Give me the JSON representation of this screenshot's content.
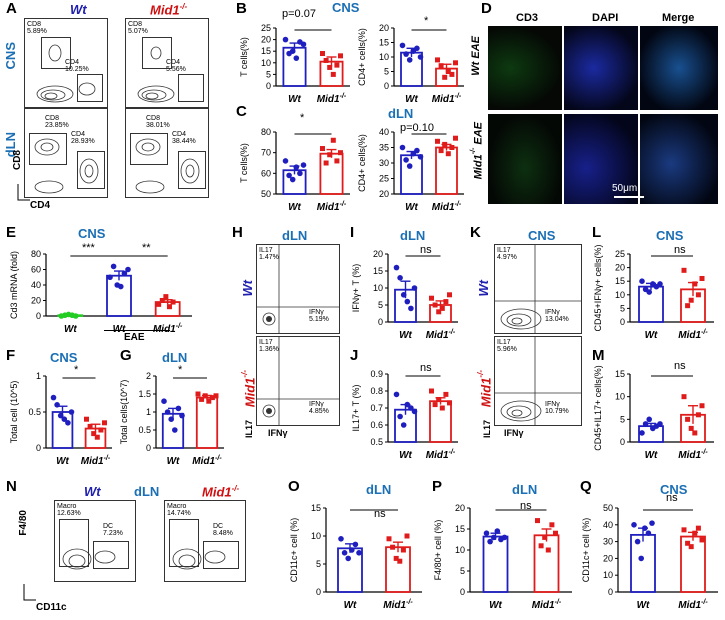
{
  "panels": {
    "A": {
      "letter": "A",
      "group_wt": "Wt",
      "group_mid1": "Mid1",
      "sup": "-/-",
      "rows": [
        "CNS",
        "dLN"
      ],
      "xlabel": "CD4",
      "ylabel": "CD8",
      "gates": [
        {
          "cd8": "CD8\n5.89%",
          "cd4": "CD4\n10.25%"
        },
        {
          "cd8": "CD8\n5.07%",
          "cd4": "CD4\n5.56%"
        },
        {
          "cd8": "CD8\n23.85%",
          "cd4": "CD4\n28.93%"
        },
        {
          "cd8": "CD8\n38.01%",
          "cd4": "CD4\n38.44%"
        }
      ]
    },
    "B": {
      "letter": "B",
      "tissue": "CNS",
      "p_left": "p=0.07",
      "p_right": "*"
    },
    "C": {
      "letter": "C",
      "tissue": "dLN",
      "p_left": "*",
      "p_right": "p=0.10"
    },
    "D": {
      "letter": "D",
      "cols": [
        "CD3",
        "DAPI",
        "Merge"
      ],
      "row1": "Wt EAE",
      "row2": "Mid1",
      "row2_suffix": "EAE",
      "scale": "50μm"
    },
    "E": {
      "letter": "E",
      "tissue": "CNS",
      "sig1": "***",
      "sig2": "**",
      "group_label": "EAE",
      "xlabels": [
        "Wt",
        "Wt",
        "Mid1"
      ]
    },
    "F": {
      "letter": "F",
      "tissue": "CNS",
      "sig": "*"
    },
    "G": {
      "letter": "G",
      "tissue": "dLN",
      "sig": "*"
    },
    "H": {
      "letter": "H",
      "tissue": "dLN",
      "q_il17_wt": "IL17\n1.47%",
      "q_ifn_wt": "IFNγ\n5.19%",
      "q_il17_mid": "IL17\n1.36%",
      "q_ifn_mid": "IFNγ\n4.85%",
      "xlabel": "IFNγ",
      "ylabel": "IL17"
    },
    "I": {
      "letter": "I",
      "tissue": "dLN",
      "sig": "ns"
    },
    "J": {
      "letter": "J",
      "sig": "ns"
    },
    "K": {
      "letter": "K",
      "tissue": "CNS",
      "q_il17_wt": "IL17\n4.97%",
      "q_ifn_wt": "IFNγ\n13.04%",
      "q_il17_mid": "IL17\n5.96%",
      "q_ifn_mid": "IFNγ\n10.79%",
      "xlabel": "IFNγ",
      "ylabel": "IL17"
    },
    "L": {
      "letter": "L",
      "tissue": "CNS",
      "sig": "ns"
    },
    "M": {
      "letter": "M",
      "sig": "ns"
    },
    "N": {
      "letter": "N",
      "tissue": "dLN",
      "macro_wt": "Macro\n12.63%",
      "dc_wt": "DC\n7.23%",
      "macro_mid": "Macro\n14.74%",
      "dc_mid": "DC\n8.48%",
      "xlabel": "CD11c",
      "ylabel": "F4/80"
    },
    "O": {
      "letter": "O",
      "tissue": "dLN",
      "sig": "ns"
    },
    "P": {
      "letter": "P",
      "tissue": "dLN",
      "sig": "ns"
    },
    "Q": {
      "letter": "Q",
      "tissue": "CNS",
      "sig": "ns"
    }
  },
  "colors": {
    "wt": "#1f1fbf",
    "mid1": "#e01b1b",
    "green": "#22cc22",
    "tissue": "#1a6fb5"
  },
  "chart_data": [
    {
      "id": "B-left",
      "type": "bar",
      "categories": [
        "Wt",
        "Mid1"
      ],
      "ylabel": "T cells(%)",
      "ylim": [
        0,
        25
      ],
      "yticks": [
        0,
        5,
        10,
        15,
        20,
        25
      ],
      "values": [
        16.5,
        10.5
      ],
      "errors": [
        2,
        2
      ],
      "points": [
        [
          20,
          14,
          15,
          12,
          19,
          18
        ],
        [
          14,
          11,
          8,
          5,
          9,
          13
        ]
      ]
    },
    {
      "id": "B-right",
      "type": "bar",
      "categories": [
        "Wt",
        "Mid1"
      ],
      "ylabel": "CD4+ cells(%)",
      "ylim": [
        0,
        20
      ],
      "yticks": [
        0,
        5,
        10,
        15,
        20
      ],
      "values": [
        11.5,
        6
      ],
      "errors": [
        1.5,
        1.5
      ],
      "points": [
        [
          14,
          11,
          9,
          12,
          13,
          10
        ],
        [
          9,
          7,
          3,
          5,
          4,
          8
        ]
      ]
    },
    {
      "id": "C-left",
      "type": "bar",
      "categories": [
        "Wt",
        "Mid1"
      ],
      "ylabel": "T cells(%)",
      "ylim": [
        50,
        80
      ],
      "yticks": [
        50,
        60,
        70,
        80
      ],
      "values": [
        61.5,
        69.5
      ],
      "errors": [
        2,
        2
      ],
      "points": [
        [
          66,
          59,
          57,
          63,
          60,
          64
        ],
        [
          72,
          65,
          69,
          76,
          66,
          70
        ]
      ]
    },
    {
      "id": "C-right",
      "type": "bar",
      "categories": [
        "Wt",
        "Mid1"
      ],
      "ylabel": "CD4+ cells(%)",
      "ylim": [
        20,
        40
      ],
      "yticks": [
        20,
        25,
        30,
        35,
        40
      ],
      "values": [
        32.5,
        35
      ],
      "errors": [
        1.2,
        1
      ],
      "points": [
        [
          35,
          31,
          29,
          33,
          34,
          32
        ],
        [
          37,
          34,
          36,
          33,
          35,
          38
        ]
      ]
    },
    {
      "id": "E",
      "type": "bar",
      "categories": [
        "Wt",
        "Wt",
        "Mid1"
      ],
      "ylabel": "Cd3 mRNA (fold)",
      "ylim": [
        0,
        80
      ],
      "yticks": [
        0,
        20,
        40,
        60,
        80
      ],
      "values": [
        1,
        52,
        18
      ],
      "errors": [
        0.5,
        6,
        3
      ],
      "points": [
        [
          0,
          1,
          2,
          1,
          0
        ],
        [
          50,
          64,
          40,
          38,
          55,
          60
        ],
        [
          15,
          20,
          25,
          12,
          18
        ]
      ]
    },
    {
      "id": "F",
      "type": "bar",
      "categories": [
        "Wt",
        "Mid1"
      ],
      "ylabel": "Total cell (10^5)",
      "ylim": [
        0,
        1.0
      ],
      "yticks": [
        0,
        0.5,
        1.0
      ],
      "values": [
        0.5,
        0.27
      ],
      "errors": [
        0.08,
        0.06
      ],
      "points": [
        [
          0.7,
          0.6,
          0.45,
          0.4,
          0.35,
          0.5
        ],
        [
          0.4,
          0.3,
          0.2,
          0.15,
          0.25,
          0.35
        ]
      ]
    },
    {
      "id": "G",
      "type": "bar",
      "categories": [
        "Wt",
        "Mid1"
      ],
      "ylabel": "Total cells(10^7)",
      "ylim": [
        0,
        2.0
      ],
      "yticks": [
        0,
        0.5,
        1.0,
        1.5,
        2.0
      ],
      "values": [
        0.95,
        1.4
      ],
      "errors": [
        0.15,
        0.06
      ],
      "points": [
        [
          1.3,
          1.0,
          0.8,
          0.5,
          1.1,
          0.9
        ],
        [
          1.5,
          1.35,
          1.45,
          1.3,
          1.4,
          1.45
        ]
      ]
    },
    {
      "id": "I",
      "type": "bar",
      "categories": [
        "Wt",
        "Mid1"
      ],
      "ylabel": "IFNγ+ T (%)",
      "ylim": [
        0,
        20
      ],
      "yticks": [
        0,
        5,
        10,
        15,
        20
      ],
      "values": [
        9.5,
        5
      ],
      "errors": [
        2.5,
        1.2
      ],
      "points": [
        [
          16,
          13,
          8,
          6,
          4,
          10
        ],
        [
          7,
          5,
          3,
          4,
          6,
          8
        ]
      ]
    },
    {
      "id": "J",
      "type": "bar",
      "categories": [
        "Wt",
        "Mid1"
      ],
      "ylabel": "IL17+ T (%)",
      "ylim": [
        0.5,
        0.9
      ],
      "yticks": [
        0.5,
        0.6,
        0.7,
        0.8,
        0.9
      ],
      "values": [
        0.69,
        0.74
      ],
      "errors": [
        0.03,
        0.02
      ],
      "points": [
        [
          0.78,
          0.65,
          0.6,
          0.72,
          0.7,
          0.68
        ],
        [
          0.8,
          0.72,
          0.75,
          0.7,
          0.78,
          0.73
        ]
      ]
    },
    {
      "id": "L",
      "type": "bar",
      "categories": [
        "Wt",
        "Mid1"
      ],
      "ylabel": "CD45+IFNγ+ cells(%)",
      "ylim": [
        0,
        25
      ],
      "yticks": [
        0,
        5,
        10,
        15,
        20,
        25
      ],
      "values": [
        13,
        12
      ],
      "errors": [
        1.2,
        2.5
      ],
      "points": [
        [
          15,
          12,
          11,
          14,
          13,
          14
        ],
        [
          19,
          6,
          8,
          14,
          10,
          16
        ]
      ]
    },
    {
      "id": "M",
      "type": "bar",
      "categories": [
        "Wt",
        "Mid1"
      ],
      "ylabel": "CD45+IL17+ cells(%)",
      "ylim": [
        0,
        15
      ],
      "yticks": [
        0,
        5,
        10,
        15
      ],
      "values": [
        3.5,
        6
      ],
      "errors": [
        0.6,
        2
      ],
      "points": [
        [
          2,
          4,
          5,
          3,
          3.5,
          4
        ],
        [
          10,
          5,
          3,
          2,
          6,
          8
        ]
      ]
    },
    {
      "id": "O",
      "type": "bar",
      "categories": [
        "Wt",
        "Mid1"
      ],
      "ylabel": "CD11c+ cell (%)",
      "ylim": [
        0,
        15
      ],
      "yticks": [
        0,
        5,
        10,
        15
      ],
      "values": [
        7.8,
        8
      ],
      "errors": [
        0.8,
        0.9
      ],
      "points": [
        [
          9.5,
          7,
          6,
          7.5,
          8.5,
          7
        ],
        [
          9.5,
          8,
          6,
          5.5,
          7.5,
          10
        ]
      ]
    },
    {
      "id": "P",
      "type": "bar",
      "categories": [
        "Wt",
        "Mid1"
      ],
      "ylabel": "F4/80+ cell (%)",
      "ylim": [
        0,
        20
      ],
      "yticks": [
        0,
        5,
        10,
        15,
        20
      ],
      "values": [
        13.2,
        13.5
      ],
      "errors": [
        0.8,
        1.5
      ],
      "points": [
        [
          14,
          12,
          13,
          14.5,
          12.5,
          13
        ],
        [
          17,
          11,
          13,
          10,
          16,
          14
        ]
      ]
    },
    {
      "id": "Q",
      "type": "bar",
      "categories": [
        "Wt",
        "Mid1"
      ],
      "ylabel": "CD11c+ cell (%)",
      "ylim": [
        0,
        50
      ],
      "yticks": [
        0,
        10,
        20,
        30,
        40,
        50
      ],
      "values": [
        34,
        33
      ],
      "errors": [
        4,
        2.5
      ],
      "points": [
        [
          40,
          30,
          20,
          38,
          35,
          41
        ],
        [
          37,
          29,
          27,
          35,
          38,
          31
        ]
      ]
    }
  ]
}
